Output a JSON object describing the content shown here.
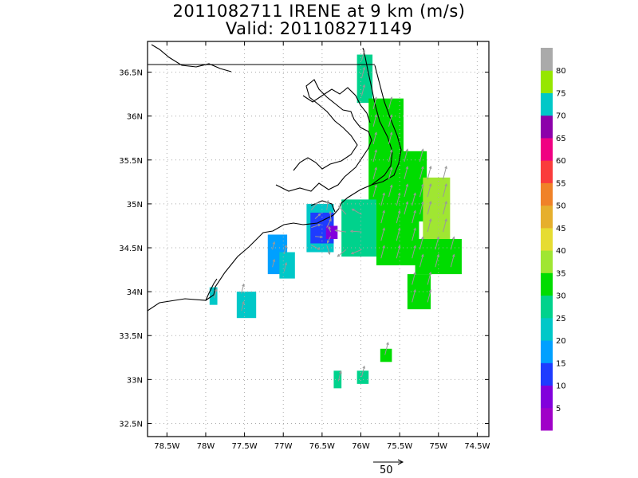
{
  "title": "2011082711 IRENE at 9 km (m/s)",
  "subtitle": "Valid: 201108271149",
  "vector_scale_label": "50",
  "colorbar": {
    "labels": [
      "5",
      "10",
      "15",
      "20",
      "25",
      "30",
      "35",
      "40",
      "45",
      "50",
      "55",
      "60",
      "65",
      "70",
      "75",
      "80"
    ],
    "colors": [
      "#a000c8",
      "#8200dc",
      "#1e3cff",
      "#00a0ff",
      "#00c8c8",
      "#00d28c",
      "#00dc00",
      "#a0e632",
      "#e6dc32",
      "#e6af2d",
      "#f08228",
      "#fa3c3c",
      "#f00082",
      "#8c00aa",
      "#00c8c8",
      "#96e600",
      "#aaaaaa"
    ]
  },
  "chart_data": {
    "type": "heatmap",
    "title": "2011082711 IRENE at 9 km (m/s)",
    "subtitle": "Valid: 201108271149",
    "xlabel": "",
    "ylabel": "",
    "x_ticks": [
      "78.5W",
      "78W",
      "77.5W",
      "77W",
      "76.5W",
      "76W",
      "75.5W",
      "75W",
      "74.5W"
    ],
    "y_ticks": [
      "32.5N",
      "33N",
      "33.5N",
      "34N",
      "34.5N",
      "35N",
      "35.5N",
      "36N",
      "36.5N"
    ],
    "xlim": [
      -78.75,
      -74.35
    ],
    "ylim": [
      32.35,
      36.85
    ],
    "grid": true,
    "units": "m/s",
    "wind_speed_regions": [
      {
        "lon": [
          -76.05,
          -75.85
        ],
        "lat": [
          36.7,
          36.15
        ],
        "speed": 28
      },
      {
        "lon": [
          -75.9,
          -75.45
        ],
        "lat": [
          36.2,
          35.0
        ],
        "speed": 31
      },
      {
        "lon": [
          -75.5,
          -75.15
        ],
        "lat": [
          35.6,
          34.8
        ],
        "speed": 34
      },
      {
        "lon": [
          -75.2,
          -74.85
        ],
        "lat": [
          35.3,
          34.6
        ],
        "speed": 35
      },
      {
        "lon": [
          -76.25,
          -75.8
        ],
        "lat": [
          35.05,
          34.4
        ],
        "speed": 27
      },
      {
        "lon": [
          -75.8,
          -75.25
        ],
        "lat": [
          35.1,
          34.3
        ],
        "speed": 34
      },
      {
        "lon": [
          -75.3,
          -74.7
        ],
        "lat": [
          34.6,
          34.2
        ],
        "speed": 34
      },
      {
        "lon": [
          -75.4,
          -75.1
        ],
        "lat": [
          34.2,
          33.8
        ],
        "speed": 33
      },
      {
        "lon": [
          -76.7,
          -76.35
        ],
        "lat": [
          35.0,
          34.45
        ],
        "speed": 22
      },
      {
        "lon": [
          -76.65,
          -76.35
        ],
        "lat": [
          34.9,
          34.55
        ],
        "speed": 14
      },
      {
        "lon": [
          -76.45,
          -76.3
        ],
        "lat": [
          34.75,
          34.6
        ],
        "speed": 8
      },
      {
        "lon": [
          -77.2,
          -76.95
        ],
        "lat": [
          34.65,
          34.2
        ],
        "speed": 16
      },
      {
        "lon": [
          -77.05,
          -76.85
        ],
        "lat": [
          34.45,
          34.15
        ],
        "speed": 20
      },
      {
        "lon": [
          -77.6,
          -77.35
        ],
        "lat": [
          34.0,
          33.7
        ],
        "speed": 22
      },
      {
        "lon": [
          -77.95,
          -77.85
        ],
        "lat": [
          34.05,
          33.85
        ],
        "speed": 20
      },
      {
        "lon": [
          -75.75,
          -75.6
        ],
        "lat": [
          33.35,
          33.2
        ],
        "speed": 33
      },
      {
        "lon": [
          -76.05,
          -75.9
        ],
        "lat": [
          33.1,
          32.95
        ],
        "speed": 27
      },
      {
        "lon": [
          -76.35,
          -76.25
        ],
        "lat": [
          33.1,
          32.9
        ],
        "speed": 25
      }
    ],
    "vector_reference_speed": 50
  }
}
